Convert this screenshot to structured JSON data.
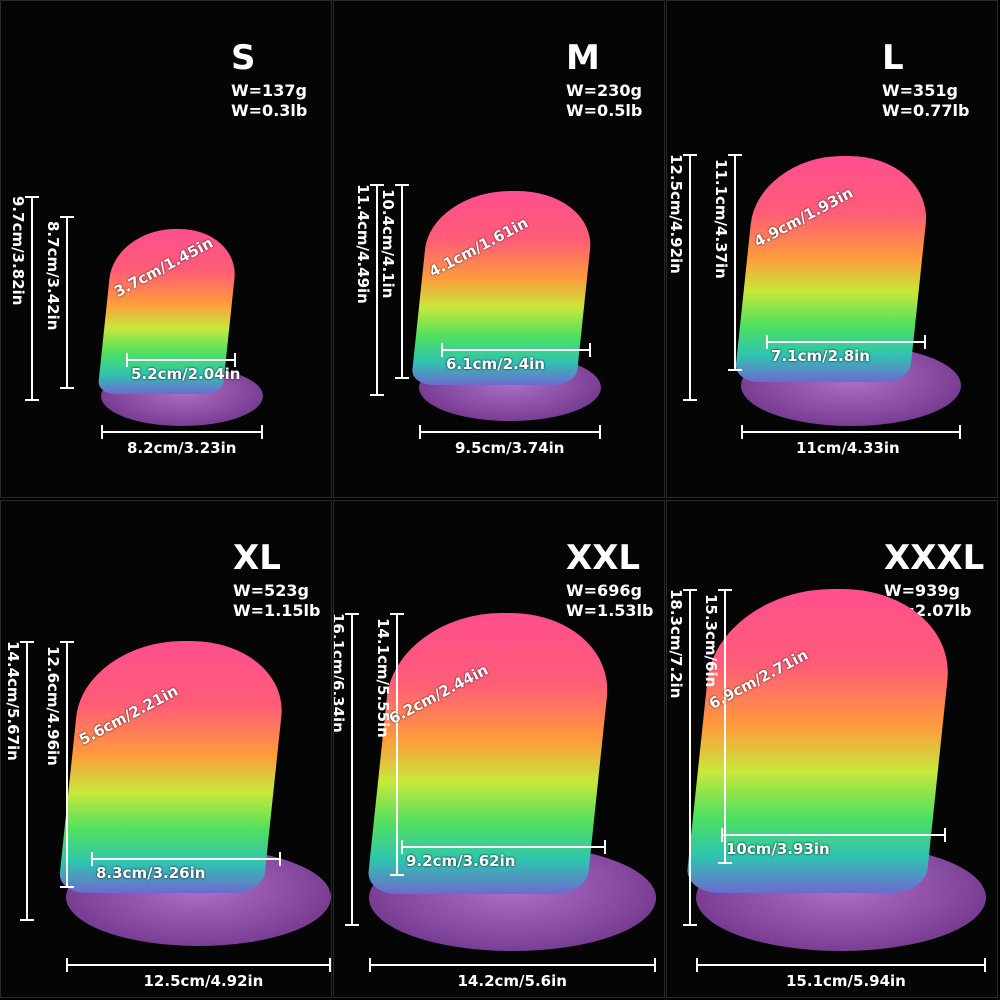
{
  "panels": [
    {
      "size": "S",
      "weight_g": "W=137g",
      "weight_lb": "W=0.3lb",
      "total_height": "9.7cm/3.82in",
      "insert_length": "8.7cm/3.42in",
      "head_diameter": "3.7cm/1.45in",
      "shaft_width": "5.2cm/2.04in",
      "base_width": "8.2cm/3.23in"
    },
    {
      "size": "M",
      "weight_g": "W=230g",
      "weight_lb": "W=0.5lb",
      "total_height": "11.4cm/4.49in",
      "insert_length": "10.4cm/4.1in",
      "head_diameter": "4.1cm/1.61in",
      "shaft_width": "6.1cm/2.4in",
      "base_width": "9.5cm/3.74in"
    },
    {
      "size": "L",
      "weight_g": "W=351g",
      "weight_lb": "W=0.77lb",
      "total_height": "12.5cm/4.92in",
      "insert_length": "11.1cm/4.37in",
      "head_diameter": "4.9cm/1.93in",
      "shaft_width": "7.1cm/2.8in",
      "base_width": "11cm/4.33in"
    },
    {
      "size": "XL",
      "weight_g": "W=523g",
      "weight_lb": "W=1.15lb",
      "total_height": "14.4cm/5.67in",
      "insert_length": "12.6cm/4.96in",
      "head_diameter": "5.6cm/2.21in",
      "shaft_width": "8.3cm/3.26in",
      "base_width": "12.5cm/4.92in"
    },
    {
      "size": "XXL",
      "weight_g": "W=696g",
      "weight_lb": "W=1.53lb",
      "total_height": "16.1cm/6.34in",
      "insert_length": "14.1cm/5.55in",
      "head_diameter": "6.2cm/2.44in",
      "shaft_width": "9.2cm/3.62in",
      "base_width": "14.2cm/5.6in"
    },
    {
      "size": "XXXL",
      "weight_g": "W=939g",
      "weight_lb": "W=2.07lb",
      "total_height": "18.3cm/7.2in",
      "insert_length": "15.3cm/6in",
      "head_diameter": "6.9cm/2.71in",
      "shaft_width": "10cm/3.93in",
      "base_width": "15.1cm/5.94in"
    }
  ],
  "colors": {
    "background": "#000000",
    "text": "#ffffff",
    "base": "#8a4aa8",
    "tip": "#ff4f8e"
  }
}
